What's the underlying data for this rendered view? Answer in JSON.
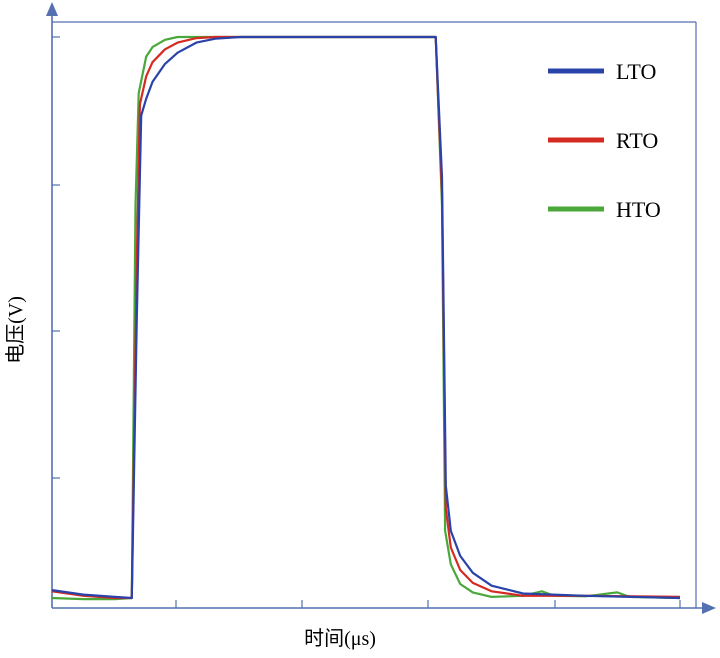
{
  "chart_data": {
    "type": "line",
    "title": "",
    "xlabel": "时间(μs)",
    "ylabel": "电压(V)",
    "xlim": [
      0,
      100
    ],
    "ylim": [
      0,
      1
    ],
    "grid": false,
    "legend_position": "top-right",
    "x_tick_count": 5,
    "y_tick_count": 4,
    "series": [
      {
        "name": "LTO",
        "color": "#2a43a8",
        "points": [
          [
            0,
            0.014
          ],
          [
            5,
            0.006
          ],
          [
            10,
            0.002
          ],
          [
            12.7,
            0.0
          ],
          [
            13.5,
            0.5
          ],
          [
            14.2,
            0.86
          ],
          [
            15,
            0.89
          ],
          [
            16,
            0.92
          ],
          [
            18,
            0.952
          ],
          [
            20,
            0.972
          ],
          [
            23,
            0.99
          ],
          [
            26,
            0.997
          ],
          [
            30,
            1.0
          ],
          [
            45,
            1.0
          ],
          [
            60,
            1.0
          ],
          [
            61.1,
            1.0
          ],
          [
            62.1,
            0.75
          ],
          [
            62.7,
            0.2
          ],
          [
            63.5,
            0.12
          ],
          [
            65,
            0.075
          ],
          [
            67,
            0.045
          ],
          [
            70,
            0.022
          ],
          [
            75,
            0.008
          ],
          [
            85,
            0.004
          ],
          [
            100,
            0.0
          ]
        ]
      },
      {
        "name": "RTO",
        "color": "#d42a22",
        "points": [
          [
            0,
            0.012
          ],
          [
            5,
            0.004
          ],
          [
            10,
            0.0
          ],
          [
            12.7,
            0.0
          ],
          [
            13.5,
            0.6
          ],
          [
            14,
            0.88
          ],
          [
            15,
            0.93
          ],
          [
            16,
            0.955
          ],
          [
            18,
            0.978
          ],
          [
            20,
            0.99
          ],
          [
            23,
            0.998
          ],
          [
            26,
            1.0
          ],
          [
            45,
            1.0
          ],
          [
            60,
            1.0
          ],
          [
            61.1,
            1.0
          ],
          [
            62.1,
            0.72
          ],
          [
            62.7,
            0.16
          ],
          [
            63.5,
            0.09
          ],
          [
            65,
            0.05
          ],
          [
            67,
            0.027
          ],
          [
            70,
            0.012
          ],
          [
            75,
            0.004
          ],
          [
            85,
            0.004
          ],
          [
            100,
            0.002
          ]
        ]
      },
      {
        "name": "HTO",
        "color": "#4aa83a",
        "points": [
          [
            0,
            0.0
          ],
          [
            5,
            -0.002
          ],
          [
            10,
            -0.002
          ],
          [
            12.7,
            0.0
          ],
          [
            13.3,
            0.7
          ],
          [
            13.8,
            0.9
          ],
          [
            15,
            0.965
          ],
          [
            16,
            0.982
          ],
          [
            18,
            0.995
          ],
          [
            20,
            1.0
          ],
          [
            45,
            1.0
          ],
          [
            60,
            1.0
          ],
          [
            61.1,
            1.0
          ],
          [
            62.1,
            0.7
          ],
          [
            62.6,
            0.12
          ],
          [
            63.5,
            0.06
          ],
          [
            65,
            0.025
          ],
          [
            67,
            0.01
          ],
          [
            70,
            0.002
          ],
          [
            75,
            0.004
          ],
          [
            78,
            0.012
          ],
          [
            80,
            0.004
          ],
          [
            85,
            0.003
          ],
          [
            90,
            0.01
          ],
          [
            92,
            0.002
          ],
          [
            100,
            0.0
          ]
        ]
      }
    ]
  }
}
